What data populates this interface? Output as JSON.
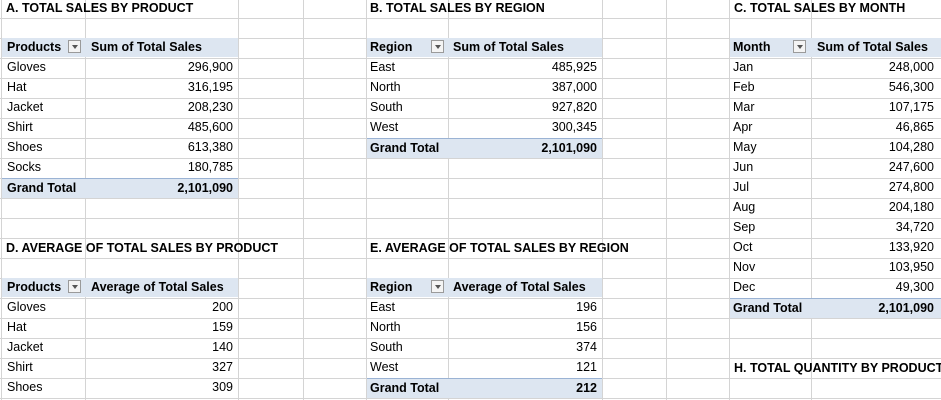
{
  "sections": {
    "A": {
      "title": "A. TOTAL SALES BY PRODUCT",
      "row_header": "Products",
      "value_header": "Sum of Total Sales",
      "rows": [
        {
          "label": "Gloves",
          "value": "296,900"
        },
        {
          "label": "Hat",
          "value": "316,195"
        },
        {
          "label": "Jacket",
          "value": "208,230"
        },
        {
          "label": "Shirt",
          "value": "485,600"
        },
        {
          "label": "Shoes",
          "value": "613,380"
        },
        {
          "label": "Socks",
          "value": "180,785"
        }
      ],
      "total_label": "Grand Total",
      "total_value": "2,101,090"
    },
    "B": {
      "title": "B. TOTAL SALES BY REGION",
      "row_header": "Region",
      "value_header": "Sum of Total Sales",
      "rows": [
        {
          "label": "East",
          "value": "485,925"
        },
        {
          "label": "North",
          "value": "387,000"
        },
        {
          "label": "South",
          "value": "927,820"
        },
        {
          "label": "West",
          "value": "300,345"
        }
      ],
      "total_label": "Grand Total",
      "total_value": "2,101,090"
    },
    "C": {
      "title": "C. TOTAL SALES BY MONTH",
      "row_header": "Month",
      "value_header": "Sum of Total Sales",
      "rows": [
        {
          "label": "Jan",
          "value": "248,000"
        },
        {
          "label": "Feb",
          "value": "546,300"
        },
        {
          "label": "Mar",
          "value": "107,175"
        },
        {
          "label": "Apr",
          "value": "46,865"
        },
        {
          "label": "May",
          "value": "104,280"
        },
        {
          "label": "Jun",
          "value": "247,600"
        },
        {
          "label": "Jul",
          "value": "274,800"
        },
        {
          "label": "Aug",
          "value": "204,180"
        },
        {
          "label": "Sep",
          "value": "34,720"
        },
        {
          "label": "Oct",
          "value": "133,920"
        },
        {
          "label": "Nov",
          "value": "103,950"
        },
        {
          "label": "Dec",
          "value": "49,300"
        }
      ],
      "total_label": "Grand Total",
      "total_value": "2,101,090"
    },
    "D": {
      "title": "D. AVERAGE OF TOTAL SALES BY PRODUCT",
      "row_header": "Products",
      "value_header": "Average of Total Sales",
      "rows": [
        {
          "label": "Gloves",
          "value": "200"
        },
        {
          "label": "Hat",
          "value": "159"
        },
        {
          "label": "Jacket",
          "value": "140"
        },
        {
          "label": "Shirt",
          "value": "327"
        },
        {
          "label": "Shoes",
          "value": "309"
        }
      ]
    },
    "E": {
      "title": "E. AVERAGE OF TOTAL SALES BY REGION",
      "row_header": "Region",
      "value_header": "Average of Total Sales",
      "rows": [
        {
          "label": "East",
          "value": "196"
        },
        {
          "label": "North",
          "value": "156"
        },
        {
          "label": "South",
          "value": "374"
        },
        {
          "label": "West",
          "value": "121"
        }
      ],
      "total_label": "Grand Total",
      "total_value": "212"
    },
    "H": {
      "title": "H. TOTAL QUANTITY BY PRODUCT"
    }
  },
  "colors": {
    "pivot_header_fill": "#dde6f1",
    "grand_total_border": "#9bb3d4",
    "gridline": "#d4d4d4"
  },
  "icons": {
    "filter_dropdown": "chevron-down-icon"
  }
}
